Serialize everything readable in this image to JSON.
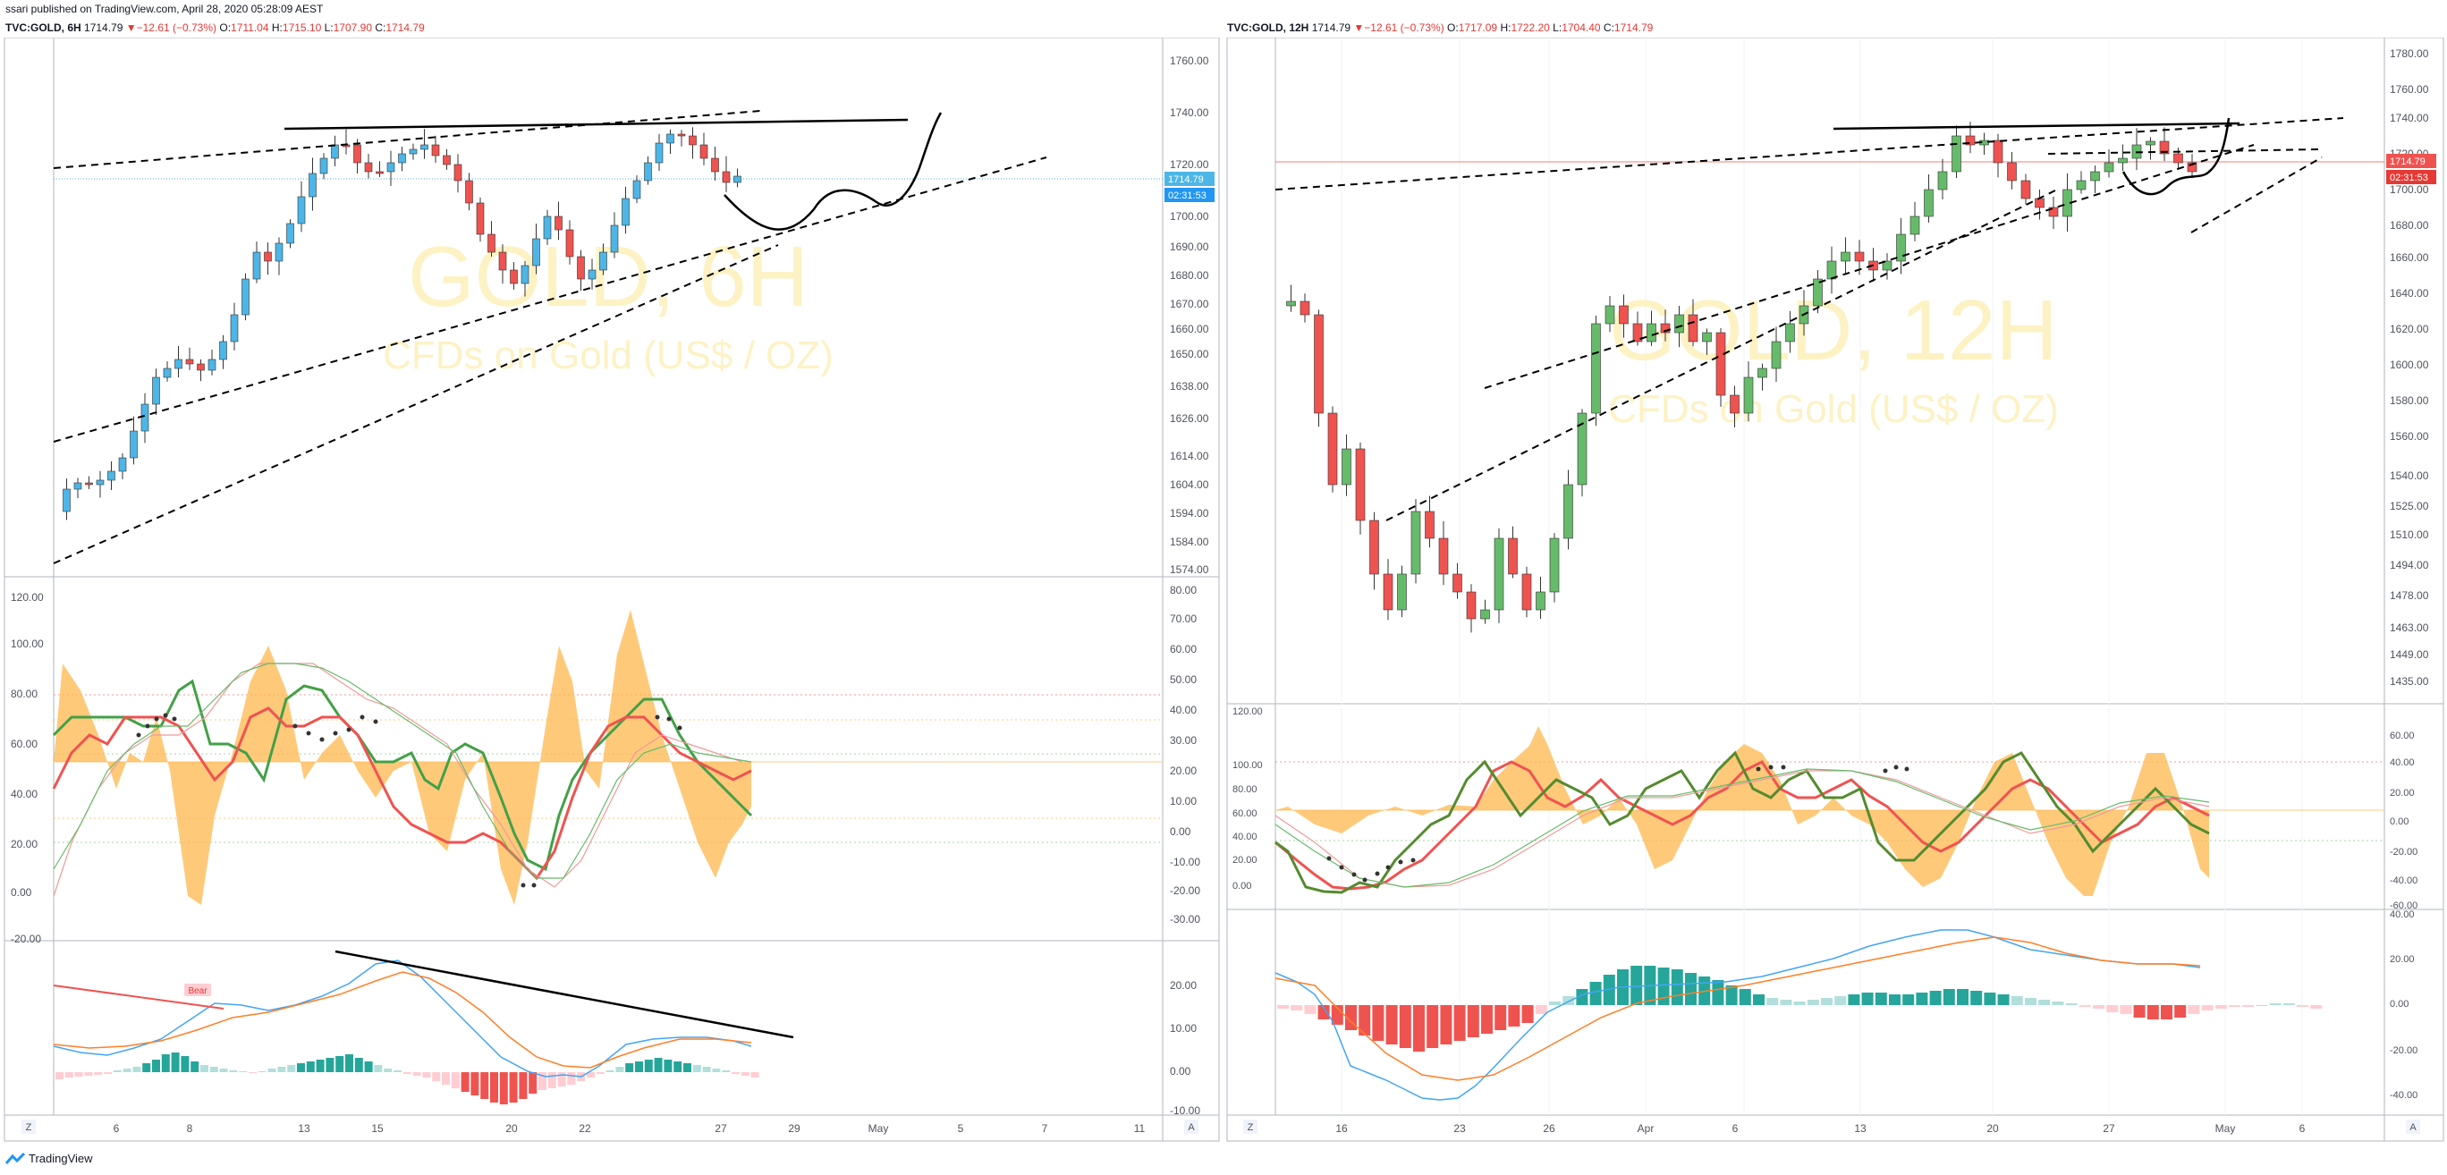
{
  "header": {
    "publisher": "ssari published on TradingView.com, April 28, 2020 05:28:09 AEST"
  },
  "footer": {
    "brand": "TradingView"
  },
  "left": {
    "symbol": "TVC:GOLD, 6H",
    "last": "1714.79",
    "change": "▼−12.61 (−0.73%)",
    "o": "1711.04",
    "h": "1715.10",
    "l": "1707.90",
    "c": "1714.79",
    "watermark_title": "GOLD, 6H",
    "watermark_sub": "CFDs on Gold (US$ / OZ)",
    "price_ticks": [
      "1760.00",
      "1740.00",
      "1720.00",
      "1700.00",
      "1690.00",
      "1680.00",
      "1670.00",
      "1660.00",
      "1650.00",
      "1638.00",
      "1626.00",
      "1614.00",
      "1604.00",
      "1594.00",
      "1584.00",
      "1574.00"
    ],
    "price_label": "1714.79",
    "countdown": "02:31:53",
    "osc_left_ticks": [
      "120.00",
      "100.00",
      "80.00",
      "60.00",
      "40.00",
      "20.00",
      "0.00",
      "-20.00"
    ],
    "osc_right_ticks": [
      "80.00",
      "70.00",
      "60.00",
      "50.00",
      "40.00",
      "30.00",
      "20.00",
      "10.00",
      "0.00",
      "-10.00",
      "-20.00",
      "-30.00"
    ],
    "macd_ticks": [
      "20.00",
      "10.00",
      "0.00",
      "-10.00"
    ],
    "bear_label": "Bear",
    "x_ticks": [
      "6",
      "8",
      "13",
      "15",
      "20",
      "22",
      "27",
      "29",
      "May",
      "5",
      "7",
      "11"
    ],
    "nav_z": "Z",
    "nav_a": "A"
  },
  "right": {
    "symbol": "TVC:GOLD, 12H",
    "last": "1714.79",
    "change": "▼−12.61 (−0.73%)",
    "o": "1717.09",
    "h": "1722.20",
    "l": "1704.40",
    "c": "1714.79",
    "watermark_title": "GOLD, 12H",
    "watermark_sub": "CFDs on Gold (US$ / OZ)",
    "price_ticks": [
      "1780.00",
      "1760.00",
      "1740.00",
      "1720.00",
      "1700.00",
      "1680.00",
      "1660.00",
      "1640.00",
      "1620.00",
      "1600.00",
      "1580.00",
      "1560.00",
      "1540.00",
      "1525.00",
      "1510.00",
      "1494.00",
      "1478.00",
      "1463.00",
      "1449.00",
      "1435.00"
    ],
    "price_label": "1714.79",
    "countdown": "02:31:53",
    "osc_left_ticks": [
      "120.00",
      "100.00",
      "80.00",
      "60.00",
      "40.00",
      "20.00",
      "0.00"
    ],
    "osc_right_ticks": [
      "60.00",
      "40.00",
      "20.00",
      "0.00",
      "-20.00",
      "-40.00",
      "-60.00"
    ],
    "macd_ticks": [
      "40.00",
      "20.00",
      "0.00",
      "-20.00",
      "-40.00"
    ],
    "x_ticks": [
      "16",
      "23",
      "26",
      "Apr",
      "6",
      "13",
      "20",
      "27",
      "May",
      "6"
    ],
    "nav_z": "Z",
    "nav_a": "A"
  },
  "colors": {
    "up": "#4db6e6",
    "down": "#ef5350",
    "up12": "#66bb6a",
    "band": "#ffb74d",
    "price_bg": "#2196f3",
    "green_line": "#43a047",
    "red_line": "#ef5350"
  }
}
